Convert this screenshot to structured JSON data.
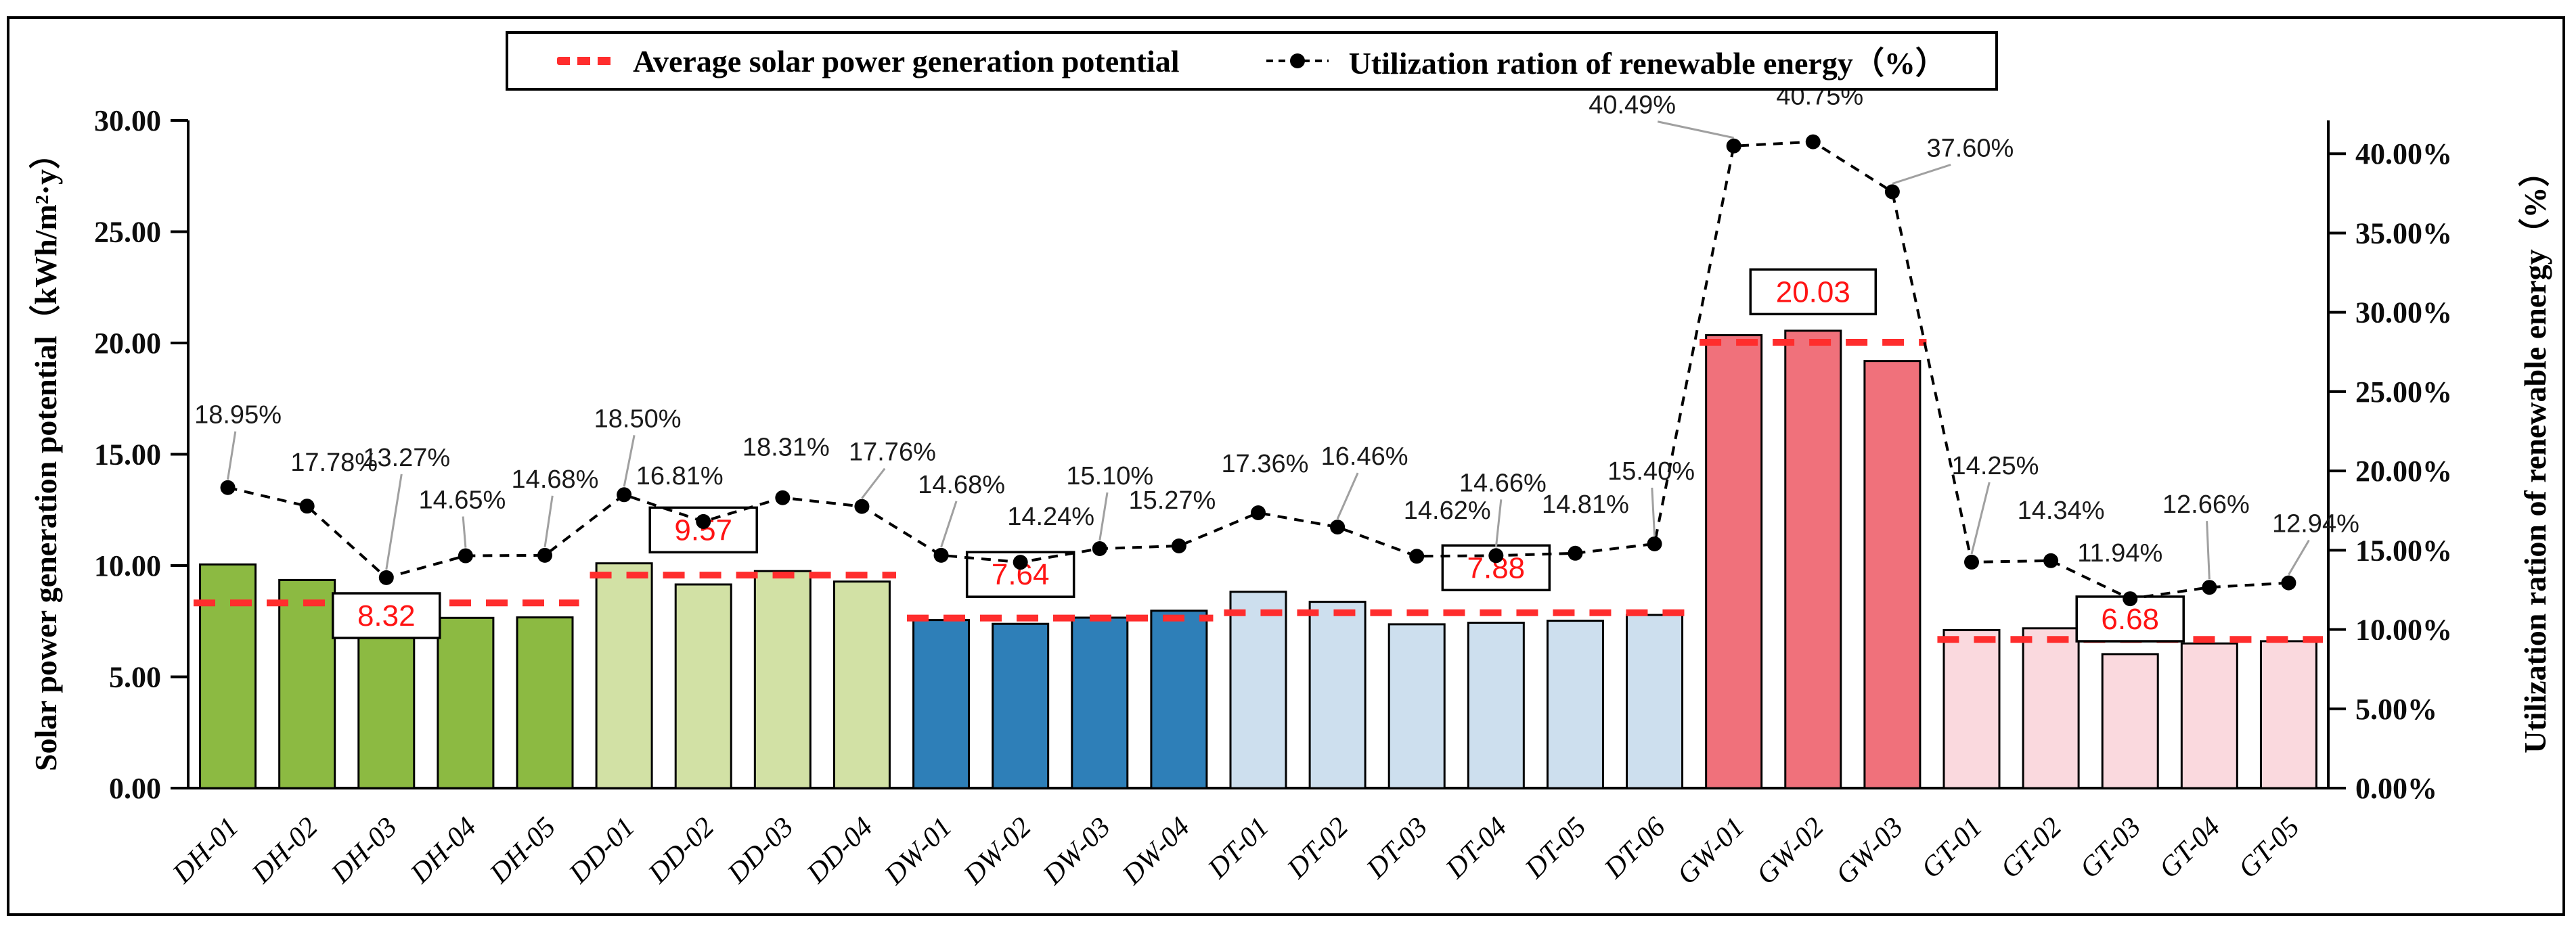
{
  "legend": {
    "avg_label": "Average solar power generation potential",
    "util_label": "Utilization ration of renewable energy（%）"
  },
  "axes": {
    "left_title": "Solar power generation potential（kWh/m²·y）",
    "right_title": "Utilization ration of renewable energy（%）",
    "left_ticks": [
      "0.00",
      "5.00",
      "10.00",
      "15.00",
      "20.00",
      "25.00",
      "30.00"
    ],
    "right_ticks": [
      "0.00%",
      "5.00%",
      "10.00%",
      "15.00%",
      "20.00%",
      "25.00%",
      "30.00%",
      "35.00%",
      "40.00%"
    ]
  },
  "colors": {
    "dh_bar": "#8CBA42",
    "dd_bar": "#D2E1A5",
    "dw_bar": "#2E7FB8",
    "dt_bar": "#CDDFEE",
    "gw_bar": "#F0717B",
    "gt_bar": "#FAD9DE",
    "bar_stroke": "#000000",
    "avg_line": "#FF2D2D",
    "avg_text": "#FF1414",
    "util_line": "#000000",
    "pct_text": "#1A1A1A",
    "leader": "#A0A0A0"
  },
  "chart_data": {
    "type": "bar+line",
    "title": "",
    "xlabel": "",
    "ylabel_left": "Solar power generation potential（kWh/m²·y）",
    "ylabel_right": "Utilization ration of renewable energy（%）",
    "ylim_left": [
      0,
      30
    ],
    "right_tick_max_pct": 40,
    "grid": false,
    "legend_position": "top-center",
    "categories": [
      "DH-01",
      "DH-02",
      "DH-03",
      "DH-04",
      "DH-05",
      "DD-01",
      "DD-02",
      "DD-03",
      "DD-04",
      "DW-01",
      "DW-02",
      "DW-03",
      "DW-04",
      "DT-01",
      "DT-02",
      "DT-03",
      "DT-04",
      "DT-05",
      "DT-06",
      "GW-01",
      "GW-02",
      "GW-03",
      "GT-01",
      "GT-02",
      "GT-03",
      "GT-04",
      "GT-05"
    ],
    "series": [
      {
        "name": "Solar power generation potential (kWh/m²·y)",
        "kind": "bar",
        "values": [
          10.05,
          9.35,
          6.88,
          7.65,
          7.67,
          10.1,
          9.15,
          9.75,
          9.28,
          7.55,
          7.38,
          7.66,
          7.97,
          8.82,
          8.37,
          7.36,
          7.43,
          7.52,
          7.78,
          20.35,
          20.55,
          19.19,
          7.1,
          7.18,
          6.02,
          6.5,
          6.6
        ]
      },
      {
        "name": "Utilization ration of renewable energy (%)",
        "kind": "line",
        "values_pct": [
          18.95,
          17.78,
          13.27,
          14.65,
          14.68,
          18.5,
          16.81,
          18.31,
          17.76,
          14.68,
          14.24,
          15.1,
          15.27,
          17.36,
          16.46,
          14.62,
          14.66,
          14.81,
          15.4,
          40.49,
          40.75,
          37.6,
          14.25,
          14.34,
          11.94,
          12.66,
          12.94
        ]
      }
    ],
    "groups": [
      {
        "prefix": "DH",
        "start": 0,
        "end": 4,
        "color_key": "dh_bar",
        "average": 8.32,
        "avg_label": "8.32",
        "avg_label_slot": 2,
        "avg_label_units": 7.75
      },
      {
        "prefix": "DD",
        "start": 5,
        "end": 8,
        "color_key": "dd_bar",
        "average": 9.57,
        "avg_label": "9.57",
        "avg_label_slot": 6,
        "avg_label_units": 11.6
      },
      {
        "prefix": "DW",
        "start": 9,
        "end": 12,
        "color_key": "dw_bar",
        "average": 7.64,
        "avg_label": "7.64",
        "avg_label_slot": 10,
        "avg_label_units": 9.6
      },
      {
        "prefix": "DT",
        "start": 13,
        "end": 18,
        "color_key": "dt_bar",
        "average": 7.88,
        "avg_label": "7.88",
        "avg_label_slot": 16,
        "avg_label_units": 9.9
      },
      {
        "prefix": "GW",
        "start": 19,
        "end": 21,
        "color_key": "gw_bar",
        "average": 20.03,
        "avg_label": "20.03",
        "avg_label_slot": 20,
        "avg_label_units": 22.3
      },
      {
        "prefix": "GT",
        "start": 22,
        "end": 26,
        "color_key": "gt_bar",
        "average": 6.68,
        "avg_label": "6.68",
        "avg_label_slot": 24,
        "avg_label_units": 7.6
      }
    ],
    "pct_label_offsets": [
      [
        15,
        -95,
        1
      ],
      [
        40,
        -52,
        0
      ],
      [
        30,
        -165,
        1
      ],
      [
        -5,
        -70,
        1
      ],
      [
        15,
        -100,
        1
      ],
      [
        20,
        -100,
        1
      ],
      [
        -35,
        -55,
        0
      ],
      [
        5,
        -62,
        0
      ],
      [
        45,
        -68,
        1
      ],
      [
        30,
        -92,
        1
      ],
      [
        45,
        -55,
        0
      ],
      [
        15,
        -95,
        1
      ],
      [
        -10,
        -55,
        0
      ],
      [
        10,
        -60,
        0
      ],
      [
        40,
        -92,
        1
      ],
      [
        45,
        -55,
        0
      ],
      [
        10,
        -95,
        1
      ],
      [
        15,
        -60,
        0
      ],
      [
        -5,
        -95,
        1
      ],
      [
        -150,
        -48,
        1
      ],
      [
        10,
        -55,
        0
      ],
      [
        115,
        -52,
        1
      ],
      [
        35,
        -130,
        1
      ],
      [
        15,
        -62,
        0
      ],
      [
        -15,
        -55,
        0
      ],
      [
        -5,
        -110,
        1
      ],
      [
        40,
        -75,
        1
      ]
    ]
  }
}
